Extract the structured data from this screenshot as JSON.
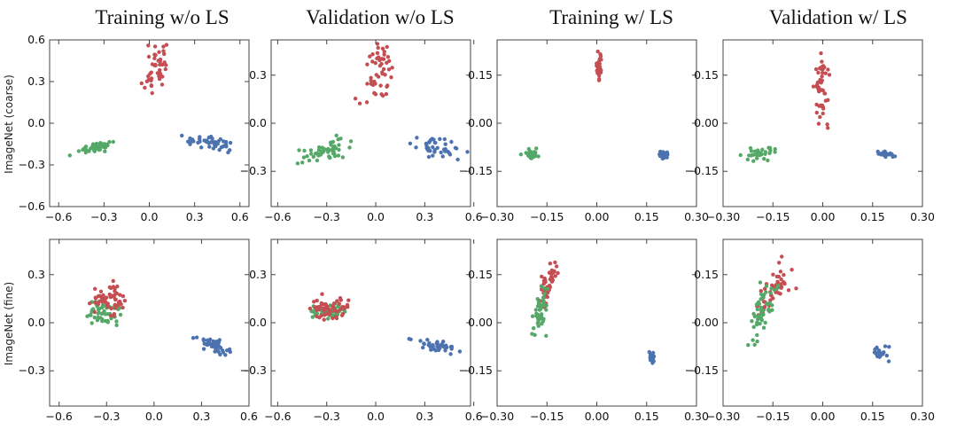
{
  "figure": {
    "column_titles": [
      "Training w/o LS",
      "Validation w/o LS",
      "Training w/ LS",
      "Validation w/ LS"
    ],
    "row_labels": [
      "ImageNet (coarse)",
      "ImageNet (fine)"
    ]
  },
  "colors": {
    "red": "#c44e52",
    "green": "#55a868",
    "blue": "#4c72b0"
  },
  "chart_data": [
    {
      "type": "scatter",
      "row": 0,
      "col": 0,
      "title": "Training w/o LS",
      "ylabel": "ImageNet (coarse)",
      "xlim": [
        -0.66,
        0.66
      ],
      "ylim": [
        -0.6,
        0.6
      ],
      "xticks": [
        -0.6,
        -0.3,
        0.0,
        0.3,
        0.6
      ],
      "xtick_labels": [
        "−0.6",
        "−0.3",
        "0.0",
        "0.3",
        "0.6"
      ],
      "yticks": [
        -0.6,
        -0.3,
        0.0,
        0.3,
        0.6
      ],
      "ytick_labels": [
        "−0.6",
        "−0.3",
        "0.0",
        "0.3",
        "0.6"
      ],
      "series": [
        {
          "name": "red",
          "cx": 0.05,
          "cy": 0.42,
          "sx": 0.04,
          "sy": 0.11,
          "n": 45,
          "rho": 0.2,
          "seed": 11
        },
        {
          "name": "green",
          "cx": -0.34,
          "cy": -0.17,
          "sx": 0.07,
          "sy": 0.03,
          "n": 45,
          "rho": 0.85,
          "seed": 12
        },
        {
          "name": "blue",
          "cx": 0.4,
          "cy": -0.14,
          "sx": 0.08,
          "sy": 0.025,
          "n": 45,
          "rho": -0.5,
          "seed": 13
        }
      ]
    },
    {
      "type": "scatter",
      "row": 0,
      "col": 1,
      "title": "Validation w/o LS",
      "ylabel": "",
      "xlim": [
        -0.64,
        0.58
      ],
      "ylim": [
        -0.52,
        0.52
      ],
      "xticks": [
        -0.6,
        -0.3,
        0.0,
        0.3,
        0.6
      ],
      "xtick_labels": [
        "−0.6",
        "−0.3",
        "0.0",
        "0.3",
        "0.6"
      ],
      "yticks": [
        -0.3,
        0.0,
        0.3
      ],
      "ytick_labels": [
        "−0.3",
        "0.0",
        "0.3"
      ],
      "series": [
        {
          "name": "red",
          "cx": 0.03,
          "cy": 0.31,
          "sx": 0.05,
          "sy": 0.1,
          "n": 50,
          "rho": 0.4,
          "seed": 21
        },
        {
          "name": "green",
          "cx": -0.33,
          "cy": -0.18,
          "sx": 0.08,
          "sy": 0.04,
          "n": 50,
          "rho": 0.7,
          "seed": 22
        },
        {
          "name": "blue",
          "cx": 0.4,
          "cy": -0.16,
          "sx": 0.07,
          "sy": 0.03,
          "n": 40,
          "rho": -0.5,
          "seed": 23
        }
      ]
    },
    {
      "type": "scatter",
      "row": 0,
      "col": 2,
      "title": "Training w/ LS",
      "ylabel": "",
      "xlim": [
        -0.3,
        0.3
      ],
      "ylim": [
        -0.26,
        0.26
      ],
      "xticks": [
        -0.3,
        -0.15,
        0.0,
        0.15,
        0.3
      ],
      "xtick_labels": [
        "−0.30",
        "−0.15",
        "0.00",
        "0.15",
        "0.30"
      ],
      "yticks": [
        -0.15,
        0.0,
        0.15
      ],
      "ytick_labels": [
        "−0.15",
        "0.00",
        "0.15"
      ],
      "series": [
        {
          "name": "red",
          "cx": 0.005,
          "cy": 0.175,
          "sx": 0.005,
          "sy": 0.025,
          "n": 28,
          "rho": 0.3,
          "seed": 31
        },
        {
          "name": "green",
          "cx": -0.195,
          "cy": -0.095,
          "sx": 0.012,
          "sy": 0.008,
          "n": 30,
          "rho": 0.1,
          "seed": 32
        },
        {
          "name": "blue",
          "cx": 0.2,
          "cy": -0.1,
          "sx": 0.006,
          "sy": 0.006,
          "n": 28,
          "rho": 0.0,
          "seed": 33
        }
      ]
    },
    {
      "type": "scatter",
      "row": 0,
      "col": 3,
      "title": "Validation w/ LS",
      "ylabel": "",
      "xlim": [
        -0.3,
        0.3
      ],
      "ylim": [
        -0.26,
        0.26
      ],
      "xticks": [
        -0.3,
        -0.15,
        0.0,
        0.15,
        0.3
      ],
      "xtick_labels": [
        "−0.30",
        "−0.15",
        "0.00",
        "0.15",
        "0.30"
      ],
      "yticks": [
        -0.15,
        0.0,
        0.15
      ],
      "ytick_labels": [
        "−0.15",
        "0.00",
        "0.15"
      ],
      "series": [
        {
          "name": "red",
          "cx": 0.0,
          "cy": 0.12,
          "sx": 0.012,
          "sy": 0.06,
          "n": 50,
          "rho": 0.2,
          "seed": 41
        },
        {
          "name": "green",
          "cx": -0.2,
          "cy": -0.095,
          "sx": 0.03,
          "sy": 0.012,
          "n": 30,
          "rho": 0.5,
          "seed": 42
        },
        {
          "name": "blue",
          "cx": 0.185,
          "cy": -0.095,
          "sx": 0.015,
          "sy": 0.006,
          "n": 20,
          "rho": -0.4,
          "seed": 43
        }
      ]
    },
    {
      "type": "scatter",
      "row": 1,
      "col": 0,
      "title": "",
      "ylabel": "ImageNet (fine)",
      "xlim": [
        -0.66,
        0.6
      ],
      "ylim": [
        -0.52,
        0.52
      ],
      "xticks": [
        -0.6,
        -0.3,
        0.0,
        0.3,
        0.6
      ],
      "xtick_labels": [
        "−0.6",
        "−0.3",
        "0.0",
        "0.3",
        "0.6"
      ],
      "yticks": [
        -0.3,
        0.0,
        0.3
      ],
      "ytick_labels": [
        "−0.3",
        "0.0",
        "0.3"
      ],
      "series": [
        {
          "name": "green",
          "cx": -0.33,
          "cy": 0.06,
          "sx": 0.06,
          "sy": 0.04,
          "n": 55,
          "rho": 0.1,
          "seed": 51
        },
        {
          "name": "red",
          "cx": -0.28,
          "cy": 0.14,
          "sx": 0.05,
          "sy": 0.05,
          "n": 55,
          "rho": 0.1,
          "seed": 52
        },
        {
          "name": "blue",
          "cx": 0.38,
          "cy": -0.14,
          "sx": 0.05,
          "sy": 0.03,
          "n": 50,
          "rho": -0.7,
          "seed": 53
        }
      ]
    },
    {
      "type": "scatter",
      "row": 1,
      "col": 1,
      "title": "",
      "ylabel": "",
      "xlim": [
        -0.64,
        0.58
      ],
      "ylim": [
        -0.52,
        0.52
      ],
      "xticks": [
        -0.6,
        -0.3,
        0.0,
        0.3,
        0.6
      ],
      "xtick_labels": [
        "−0.6",
        "−0.3",
        "0.0",
        "0.3",
        "0.6"
      ],
      "yticks": [
        -0.3,
        0.0,
        0.3
      ],
      "ytick_labels": [
        "−0.3",
        "0.0",
        "0.3"
      ],
      "series": [
        {
          "name": "green",
          "cx": -0.3,
          "cy": 0.07,
          "sx": 0.06,
          "sy": 0.025,
          "n": 50,
          "rho": 0.1,
          "seed": 61
        },
        {
          "name": "red",
          "cx": -0.28,
          "cy": 0.09,
          "sx": 0.05,
          "sy": 0.03,
          "n": 55,
          "rho": 0.1,
          "seed": 62
        },
        {
          "name": "blue",
          "cx": 0.35,
          "cy": -0.14,
          "sx": 0.07,
          "sy": 0.025,
          "n": 40,
          "rho": -0.7,
          "seed": 63
        }
      ]
    },
    {
      "type": "scatter",
      "row": 1,
      "col": 2,
      "title": "",
      "ylabel": "",
      "xlim": [
        -0.3,
        0.3
      ],
      "ylim": [
        -0.26,
        0.26
      ],
      "xticks": [
        -0.3,
        -0.15,
        0.0,
        0.15,
        0.3
      ],
      "xtick_labels": [
        "−0.30",
        "−0.15",
        "0.00",
        "0.15",
        "0.30"
      ],
      "yticks": [
        -0.15,
        0.0,
        0.15
      ],
      "ytick_labels": [
        "−0.15",
        "0.00",
        "0.15"
      ],
      "series": [
        {
          "name": "red",
          "cx": -0.145,
          "cy": 0.12,
          "sx": 0.015,
          "sy": 0.035,
          "n": 50,
          "rho": 0.7,
          "seed": 71
        },
        {
          "name": "green",
          "cx": -0.17,
          "cy": 0.03,
          "sx": 0.012,
          "sy": 0.04,
          "n": 45,
          "rho": 0.6,
          "seed": 72
        },
        {
          "name": "blue",
          "cx": 0.165,
          "cy": -0.105,
          "sx": 0.004,
          "sy": 0.008,
          "n": 25,
          "rho": 0.0,
          "seed": 73
        }
      ]
    },
    {
      "type": "scatter",
      "row": 1,
      "col": 3,
      "title": "",
      "ylabel": "",
      "xlim": [
        -0.3,
        0.3
      ],
      "ylim": [
        -0.26,
        0.26
      ],
      "xticks": [
        -0.3,
        -0.15,
        0.0,
        0.15,
        0.3
      ],
      "xtick_labels": [
        "−0.30",
        "−0.15",
        "0.00",
        "0.15",
        "0.30"
      ],
      "yticks": [
        -0.15,
        0.0,
        0.15
      ],
      "ytick_labels": [
        "−0.15",
        "0.00",
        "0.15"
      ],
      "series": [
        {
          "name": "red",
          "cx": -0.15,
          "cy": 0.1,
          "sx": 0.022,
          "sy": 0.04,
          "n": 55,
          "rho": 0.5,
          "seed": 81
        },
        {
          "name": "green",
          "cx": -0.18,
          "cy": 0.04,
          "sx": 0.018,
          "sy": 0.045,
          "n": 50,
          "rho": 0.6,
          "seed": 82
        },
        {
          "name": "blue",
          "cx": 0.17,
          "cy": -0.095,
          "sx": 0.012,
          "sy": 0.01,
          "n": 25,
          "rho": -0.2,
          "seed": 83
        }
      ]
    }
  ]
}
